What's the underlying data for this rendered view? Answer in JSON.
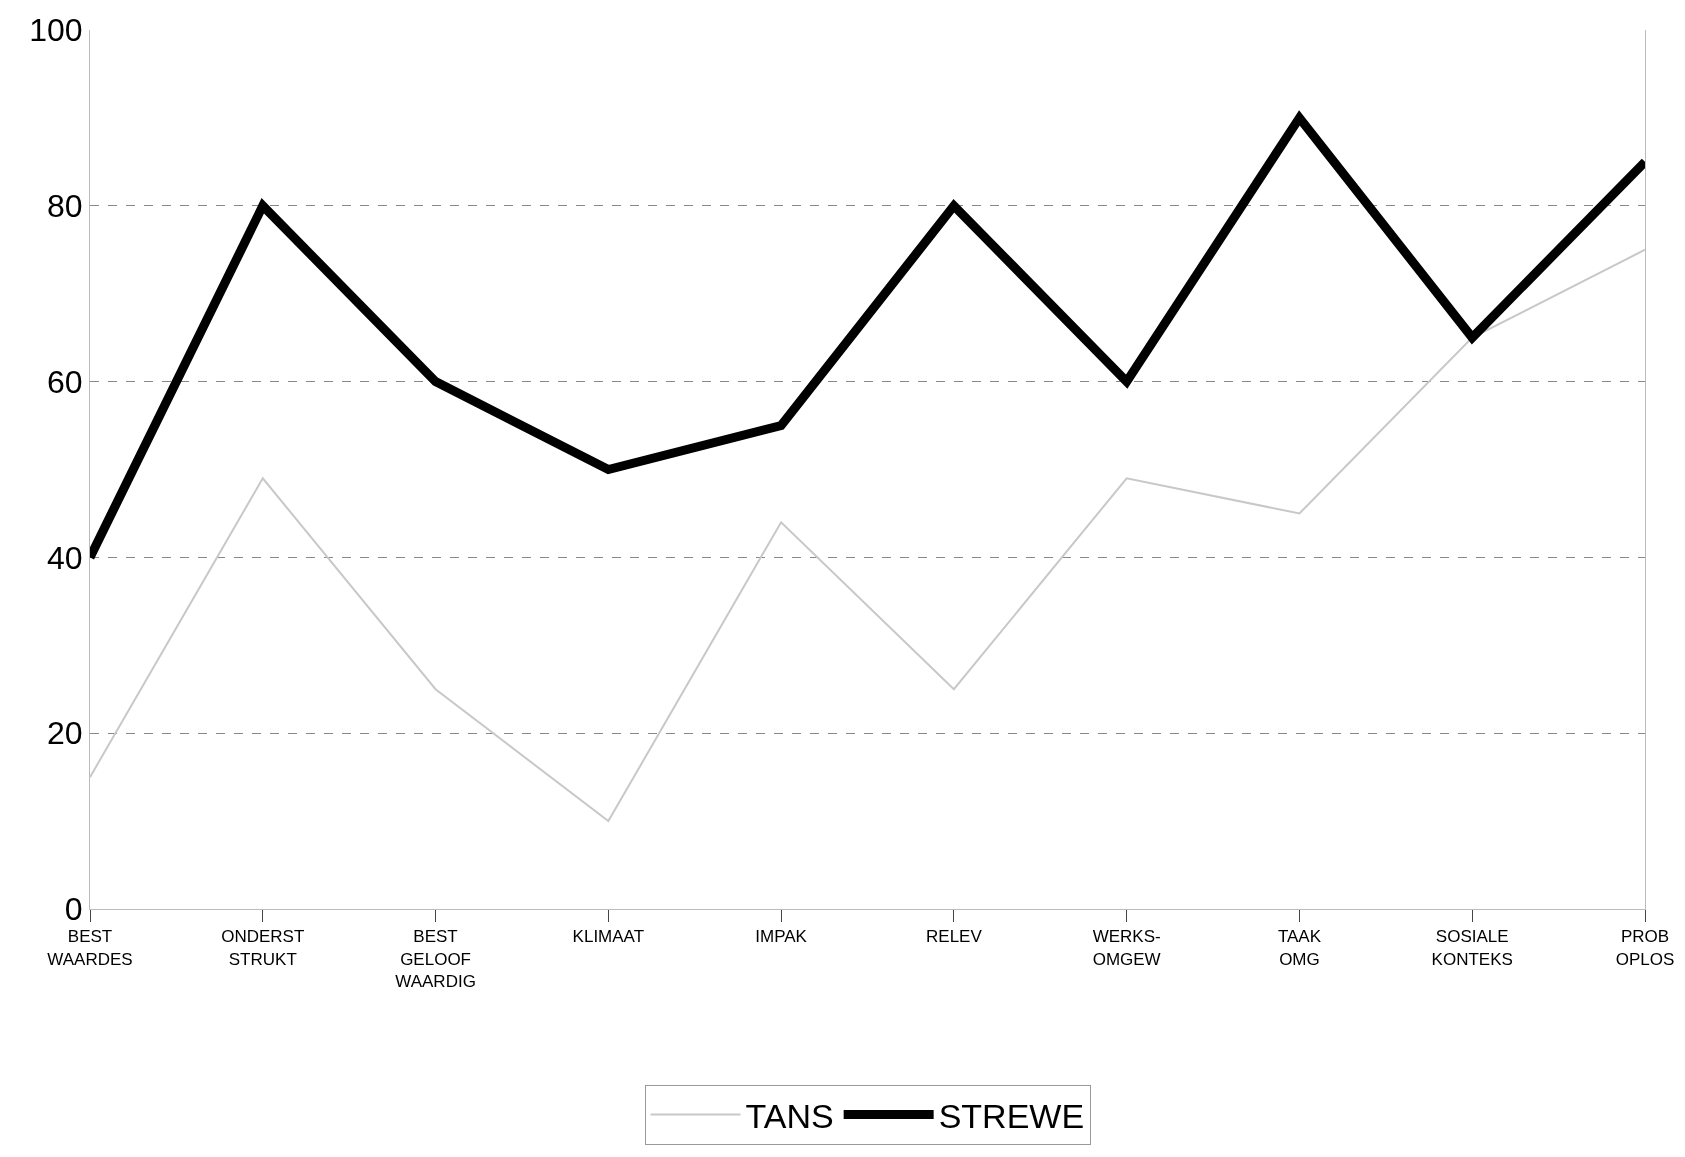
{
  "chart_data": {
    "type": "line",
    "categories": [
      "BEST\nWAARDES",
      "ONDERST\nSTRUKT",
      "BEST\nGELOOF\nWAARDIG",
      "KLIMAAT",
      "IMPAK",
      "RELEV",
      "WERKS-\nOMGEW",
      "TAAK\nOMG",
      "SOSIALE\nKONTEKS",
      "PROB\nOPLOS"
    ],
    "series": [
      {
        "name": "TANS",
        "color": "#c8c8c8",
        "values": [
          15,
          49,
          25,
          10,
          44,
          25,
          49,
          45,
          65,
          75
        ]
      },
      {
        "name": "STREWE",
        "color": "#000000",
        "values": [
          40,
          80,
          60,
          50,
          55,
          80,
          60,
          90,
          65,
          85
        ]
      }
    ],
    "ylim": [
      0,
      100
    ],
    "yticks": [
      0,
      20,
      40,
      60,
      80,
      100
    ],
    "grid": "y",
    "legend": "bottom",
    "marker": "none",
    "line_style": "solid"
  }
}
